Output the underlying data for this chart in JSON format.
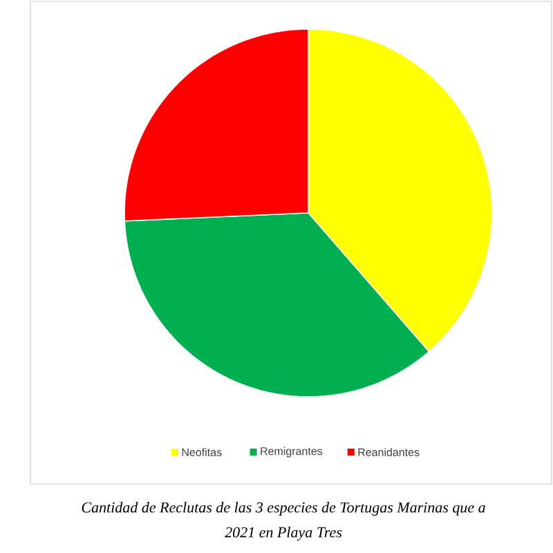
{
  "chart_data": {
    "type": "pie",
    "categories": [
      "Neofitas",
      "Remigrantes",
      "Reanidantes"
    ],
    "values": [
      38.6,
      35.7,
      25.7
    ],
    "colors": [
      "#ffff00",
      "#00b050",
      "#ff0000"
    ],
    "legend": "bottom",
    "annotations": [
      "Cantidad de Reclutas de las 3 especies de Tortugas Marinas que a",
      "2021 en Playa Tres"
    ]
  }
}
